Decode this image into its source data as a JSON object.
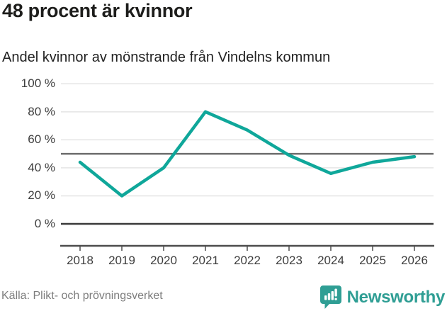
{
  "header": {
    "title": "48 procent är kvinnor",
    "subtitle": "Andel kvinnor av mönstrande från Vindelns kommun"
  },
  "footer": {
    "source": "Källa: Plikt- och prövningsverket",
    "brand": "Newsworthy",
    "brand_icon": "newsworthy-bar-chart-badge"
  },
  "colors": {
    "line": "#0fa79a",
    "grid": "#e4e4e4",
    "reference_line": "#6d6d6d",
    "zero_line": "#3a3a3a",
    "axis": "#4d4d4d",
    "tick_text": "#3d3d3d",
    "muted_text": "#7d7d7d",
    "brand": "#2f9e94",
    "title_text": "#1d1d1b"
  },
  "chart_data": {
    "type": "line",
    "title": "48 procent är kvinnor",
    "subtitle": "Andel kvinnor av mönstrande från Vindelns kommun",
    "categories": [
      "2018",
      "2019",
      "2020",
      "2021",
      "2022",
      "2023",
      "2024",
      "2025",
      "2026"
    ],
    "series": [
      {
        "name": "Andel kvinnor av mönstrande",
        "values": [
          44,
          20,
          40,
          80,
          67,
          49,
          36,
          44,
          48
        ]
      }
    ],
    "unit": "%",
    "ylim": [
      0,
      100
    ],
    "yticks": [
      0,
      20,
      40,
      60,
      80,
      100
    ],
    "ytick_suffix": " %",
    "reference_line": 50,
    "grid": true,
    "legend": false,
    "latest_value_pct": 48
  }
}
